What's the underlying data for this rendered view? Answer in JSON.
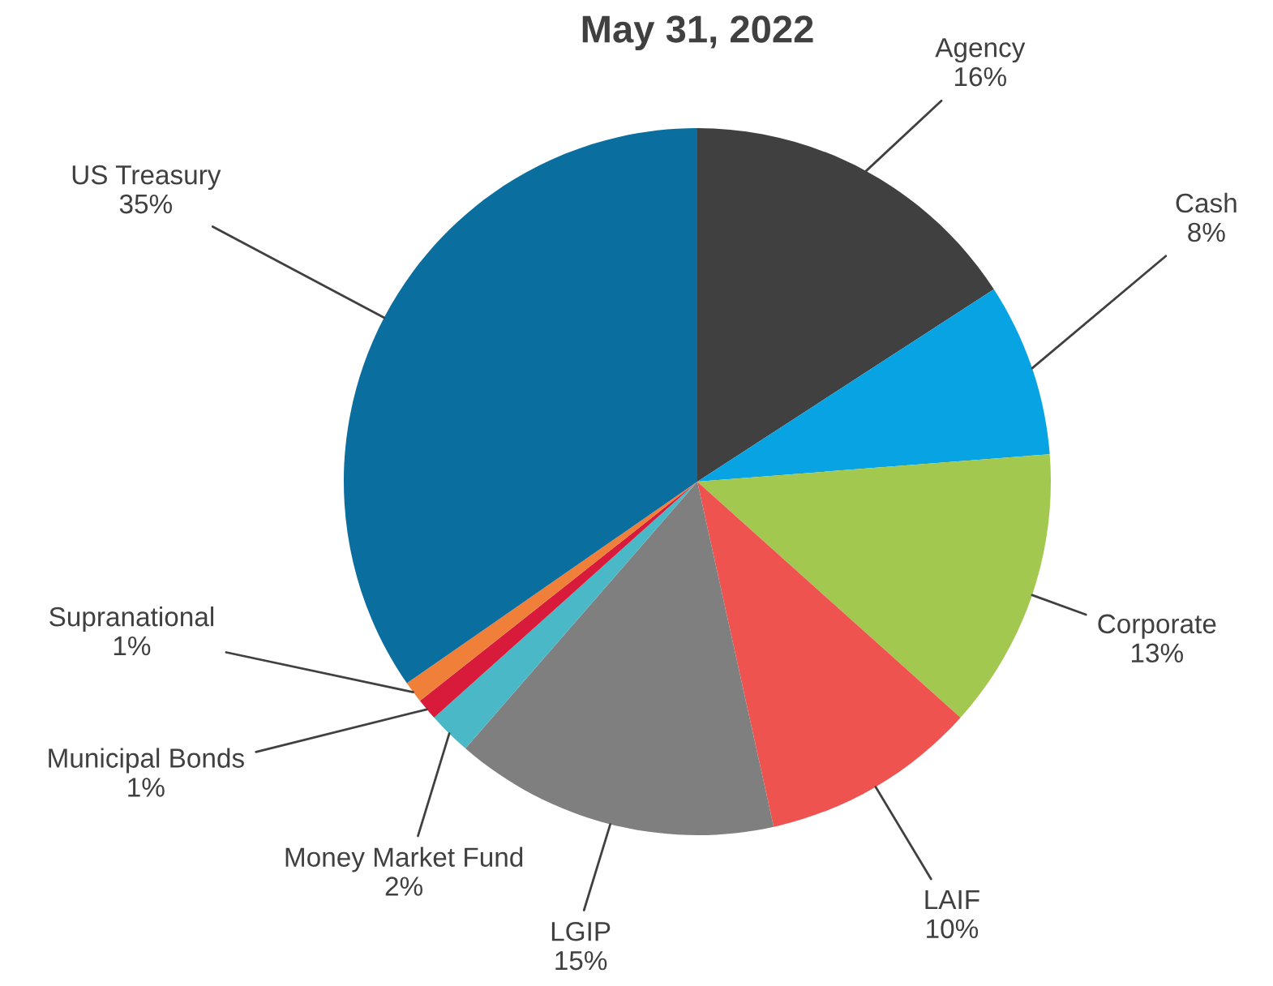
{
  "chart_data": {
    "type": "pie",
    "title": "May 31, 2022",
    "categories": [
      "Agency",
      "Cash",
      "Corporate",
      "LAIF",
      "LGIP",
      "Money Market Fund",
      "Municipal Bonds",
      "Supranational",
      "US Treasury"
    ],
    "values": [
      16,
      8,
      13,
      10,
      15,
      2,
      1,
      1,
      35
    ],
    "value_labels": [
      "16%",
      "8%",
      "13%",
      "10%",
      "15%",
      "2%",
      "1%",
      "1%",
      "35%"
    ],
    "colors": [
      "#404040",
      "#07a3e3",
      "#a2c850",
      "#ef5350",
      "#7f7f7f",
      "#4bb8c8",
      "#d81b3a",
      "#f07f3a",
      "#0a6e9e"
    ]
  }
}
